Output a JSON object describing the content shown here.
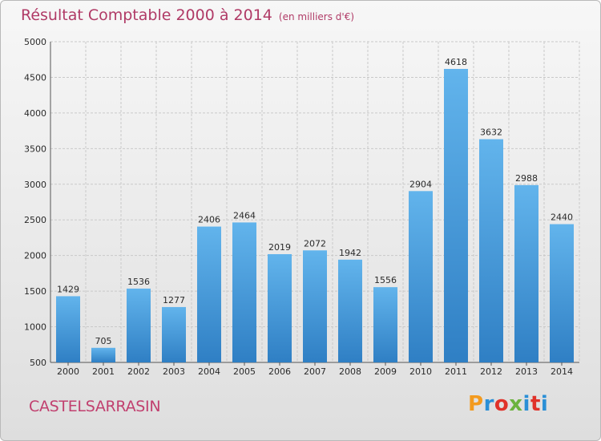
{
  "header": {
    "title": "Résultat Comptable 2000 à 2014",
    "subtitle": "(en milliers d'€)"
  },
  "footer": {
    "city": "CASTELSARRASIN",
    "logo_text": "Proxiti",
    "logo_colors": [
      "#f39a1e",
      "#2a8fd6",
      "#e0322a",
      "#6cb33e",
      "#2a8fd6",
      "#e0322a",
      "#2a8fd6"
    ]
  },
  "colors": {
    "title": "#b03a66",
    "bar_top": "#62b4ec",
    "bar_bottom": "#2f7fc4"
  },
  "chart_data": {
    "type": "bar",
    "categories": [
      "2000",
      "2001",
      "2002",
      "2003",
      "2004",
      "2005",
      "2006",
      "2007",
      "2008",
      "2009",
      "2010",
      "2011",
      "2012",
      "2013",
      "2014"
    ],
    "values": [
      1429,
      705,
      1536,
      1277,
      2406,
      2464,
      2019,
      2072,
      1942,
      1556,
      2904,
      4618,
      3632,
      2988,
      2440
    ],
    "title": "Résultat Comptable 2000 à 2014",
    "xlabel": "",
    "ylabel": "",
    "ylim": [
      500,
      5000
    ],
    "yticks": [
      500,
      1000,
      1500,
      2000,
      2500,
      3000,
      3500,
      4000,
      4500,
      5000
    ],
    "grid": true,
    "data_labels": true
  }
}
